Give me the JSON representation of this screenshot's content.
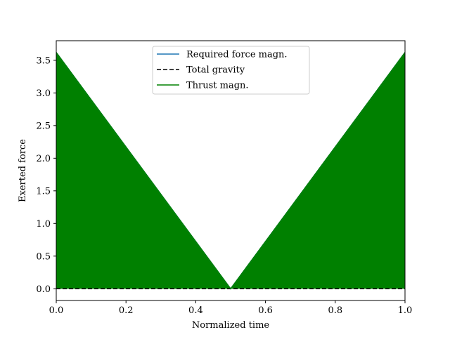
{
  "chart_data": {
    "type": "area",
    "title": "",
    "xlabel": "Normalized time",
    "ylabel": "Exerted force",
    "xlim": [
      0.0,
      1.0
    ],
    "ylim": [
      -0.18,
      3.8
    ],
    "xticks": [
      0.0,
      0.2,
      0.4,
      0.6,
      0.8,
      1.0
    ],
    "xtick_labels": [
      "0.0",
      "0.2",
      "0.4",
      "0.6",
      "0.8",
      "1.0"
    ],
    "yticks": [
      0.0,
      0.5,
      1.0,
      1.5,
      2.0,
      2.5,
      3.0,
      3.5
    ],
    "ytick_labels": [
      "0.0",
      "0.5",
      "1.0",
      "1.5",
      "2.0",
      "2.5",
      "3.0",
      "3.5"
    ],
    "grid": false,
    "legend_position": "top-center",
    "series": [
      {
        "name": "Required force magn.",
        "style": "solid",
        "color": "#1f77b4",
        "x": [
          0.0,
          0.5,
          1.0
        ],
        "y": [
          3.62,
          0.0,
          3.62
        ]
      },
      {
        "name": "Total gravity",
        "style": "dashed",
        "color": "#000000",
        "x": [
          0.0,
          1.0
        ],
        "y": [
          0.0,
          0.0
        ]
      },
      {
        "name": "Thrust magn.",
        "style": "solid",
        "color": "#008000",
        "x": [
          0.0,
          0.5,
          1.0
        ],
        "y": [
          3.62,
          0.0,
          3.62
        ]
      }
    ],
    "fill": {
      "color": "#008000",
      "x": [
        0.0,
        0.5,
        1.0
      ],
      "y": [
        3.62,
        0.0,
        3.62
      ],
      "baseline": 0.0
    }
  }
}
